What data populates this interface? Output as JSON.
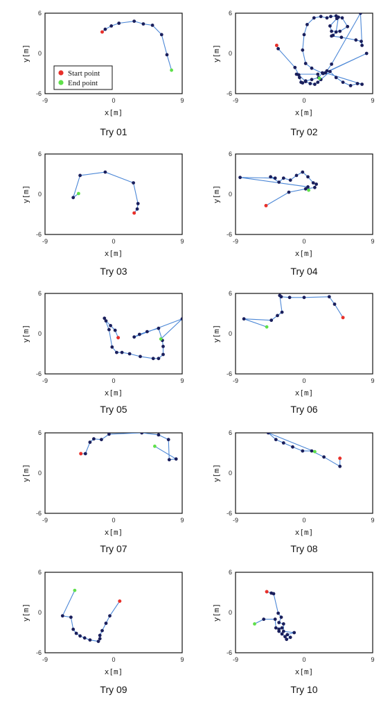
{
  "figure": {
    "x_label": "x[m]",
    "y_label": "y[m]",
    "legend": [
      {
        "label": "Start point",
        "color": "#e8302a"
      },
      {
        "label": "End point",
        "color": "#5fe04a"
      }
    ]
  },
  "colors": {
    "path": "#4a86d6",
    "point": "#1a1f5c",
    "start": "#e8302a",
    "end": "#5fe04a"
  },
  "chart_data": [
    {
      "type": "scatter",
      "caption": "Try 01",
      "xlim": [
        -9,
        9
      ],
      "ylim": [
        -6,
        6
      ],
      "x_ticks": [
        "-9",
        "0",
        "9"
      ],
      "y_ticks": [
        "6",
        "0",
        "-6"
      ],
      "legend_placement": "lower-left",
      "points": [
        [
          -1.5,
          3.2
        ],
        [
          -1.1,
          3.6
        ],
        [
          -0.3,
          4.1
        ],
        [
          0.7,
          4.5
        ],
        [
          2.7,
          4.8
        ],
        [
          3.9,
          4.4
        ],
        [
          5.1,
          4.2
        ],
        [
          6.3,
          2.8
        ],
        [
          7.0,
          -0.2
        ],
        [
          7.6,
          -2.5
        ]
      ]
    },
    {
      "type": "scatter",
      "caption": "Try 02",
      "xlim": [
        -9,
        9
      ],
      "ylim": [
        -6,
        6
      ],
      "x_ticks": [
        "-9",
        "0",
        "9"
      ],
      "y_ticks": [
        "6",
        "0",
        "-6"
      ],
      "points": [
        [
          -3.6,
          1.2
        ],
        [
          -3.4,
          0.7
        ],
        [
          -1.2,
          -2.1
        ],
        [
          -0.7,
          -3.2
        ],
        [
          0.2,
          -4.2
        ],
        [
          0.8,
          -4.5
        ],
        [
          1.4,
          -4.6
        ],
        [
          1.8,
          -4.3
        ],
        [
          2.2,
          -3.9
        ],
        [
          3.4,
          -2.7
        ],
        [
          4.2,
          -3.6
        ],
        [
          5.1,
          -4.3
        ],
        [
          6.1,
          -4.8
        ],
        [
          7.0,
          -4.5
        ],
        [
          7.6,
          -4.6
        ],
        [
          2.8,
          -2.9
        ],
        [
          8.2,
          0.0
        ],
        [
          2.5,
          -3.0
        ],
        [
          1.0,
          -2.2
        ],
        [
          0.2,
          -1.5
        ],
        [
          -0.2,
          0.5
        ],
        [
          0.0,
          2.8
        ],
        [
          0.4,
          4.3
        ],
        [
          1.3,
          5.3
        ],
        [
          2.2,
          5.5
        ],
        [
          3.0,
          5.3
        ],
        [
          3.5,
          5.5
        ],
        [
          4.2,
          5.6
        ],
        [
          5.0,
          5.3
        ],
        [
          5.7,
          4.0
        ],
        [
          4.7,
          3.3
        ],
        [
          3.6,
          3.3
        ],
        [
          3.4,
          4.1
        ],
        [
          4.3,
          5.2
        ],
        [
          4.5,
          5.4
        ],
        [
          4.2,
          3.2
        ],
        [
          3.8,
          2.7
        ],
        [
          3.6,
          2.6
        ],
        [
          4.9,
          2.4
        ],
        [
          6.8,
          2.0
        ],
        [
          7.5,
          1.8
        ],
        [
          7.6,
          1.2
        ],
        [
          7.4,
          6.0
        ],
        [
          3.6,
          -1.6
        ],
        [
          3.0,
          -2.6
        ],
        [
          2.4,
          -2.9
        ],
        [
          1.9,
          -3.6
        ],
        [
          1.0,
          -3.9
        ],
        [
          0.2,
          -4.1
        ],
        [
          -0.2,
          -4.4
        ],
        [
          -0.4,
          -4.3
        ],
        [
          -0.6,
          -3.6
        ],
        [
          -1.0,
          -3.1
        ],
        [
          1.8,
          -3.1
        ],
        [
          2.0,
          -3.7
        ]
      ]
    },
    {
      "type": "scatter",
      "caption": "Try 03",
      "xlim": [
        -9,
        9
      ],
      "ylim": [
        -6,
        6
      ],
      "x_ticks": [
        "-9",
        "0",
        "9"
      ],
      "y_ticks": [
        "6",
        "0",
        "-6"
      ],
      "points": [
        [
          2.7,
          -2.8
        ],
        [
          3.1,
          -2.2
        ],
        [
          3.2,
          -1.4
        ],
        [
          2.6,
          1.7
        ],
        [
          -1.1,
          3.3
        ],
        [
          -4.4,
          2.8
        ],
        [
          -5.3,
          -0.5
        ],
        [
          -4.6,
          0.1
        ]
      ]
    },
    {
      "type": "scatter",
      "caption": "Try 04",
      "xlim": [
        -9,
        9
      ],
      "ylim": [
        -6,
        6
      ],
      "x_ticks": [
        "-9",
        "0",
        "9"
      ],
      "y_ticks": [
        "6",
        "0",
        "-6"
      ],
      "points": [
        [
          -5.0,
          -1.7
        ],
        [
          -2.0,
          0.3
        ],
        [
          0.2,
          0.8
        ],
        [
          1.4,
          1.0
        ],
        [
          1.6,
          1.5
        ],
        [
          1.2,
          1.7
        ],
        [
          0.5,
          2.6
        ],
        [
          -0.2,
          3.3
        ],
        [
          -1.0,
          2.8
        ],
        [
          -1.8,
          2.1
        ],
        [
          -2.7,
          2.4
        ],
        [
          -3.3,
          1.8
        ],
        [
          -4.4,
          2.6
        ],
        [
          -3.8,
          2.4
        ],
        [
          -8.4,
          2.5
        ],
        [
          0.5,
          1.1
        ],
        [
          0.6,
          0.6
        ]
      ]
    },
    {
      "type": "scatter",
      "caption": "Try 05",
      "xlim": [
        -9,
        9
      ],
      "ylim": [
        -6,
        6
      ],
      "x_ticks": [
        "-9",
        "0",
        "9"
      ],
      "y_ticks": [
        "6",
        "0",
        "-6"
      ],
      "points": [
        [
          0.6,
          -0.6
        ],
        [
          0.2,
          0.5
        ],
        [
          -0.4,
          1.2
        ],
        [
          -1.0,
          1.9
        ],
        [
          -1.2,
          2.3
        ],
        [
          -0.6,
          0.6
        ],
        [
          -0.2,
          -2.0
        ],
        [
          0.4,
          -2.8
        ],
        [
          1.1,
          -2.8
        ],
        [
          2.1,
          -3.0
        ],
        [
          3.5,
          -3.4
        ],
        [
          5.2,
          -3.7
        ],
        [
          5.9,
          -3.7
        ],
        [
          6.5,
          -3.1
        ],
        [
          6.5,
          -1.9
        ],
        [
          6.4,
          -1.0
        ],
        [
          5.9,
          0.8
        ],
        [
          4.4,
          0.3
        ],
        [
          3.4,
          -0.1
        ],
        [
          2.7,
          -0.5
        ],
        [
          9.0,
          2.2
        ],
        [
          6.2,
          -0.8
        ]
      ]
    },
    {
      "type": "scatter",
      "caption": "Try 06",
      "xlim": [
        -9,
        9
      ],
      "ylim": [
        -6,
        6
      ],
      "x_ticks": [
        "-9",
        "0",
        "9"
      ],
      "y_ticks": [
        "6",
        "0",
        "-6"
      ],
      "points": [
        [
          5.1,
          2.4
        ],
        [
          4.0,
          4.4
        ],
        [
          3.3,
          5.5
        ],
        [
          0.0,
          5.4
        ],
        [
          -1.9,
          5.4
        ],
        [
          -3.0,
          5.5
        ],
        [
          -3.2,
          5.7
        ],
        [
          -2.9,
          3.2
        ],
        [
          -3.5,
          2.7
        ],
        [
          -4.3,
          2.0
        ],
        [
          -7.9,
          2.2
        ],
        [
          -4.9,
          1.0
        ]
      ]
    },
    {
      "type": "scatter",
      "caption": "Try 07",
      "xlim": [
        -9,
        9
      ],
      "ylim": [
        -6,
        6
      ],
      "x_ticks": [
        "-9",
        "0",
        "9"
      ],
      "y_ticks": [
        "6",
        "0",
        "-6"
      ],
      "points": [
        [
          -4.3,
          2.9
        ],
        [
          -3.7,
          2.9
        ],
        [
          -3.1,
          4.6
        ],
        [
          -2.6,
          5.1
        ],
        [
          -1.6,
          5.0
        ],
        [
          -0.6,
          5.8
        ],
        [
          3.7,
          6.0
        ],
        [
          5.9,
          5.7
        ],
        [
          7.2,
          5.0
        ],
        [
          7.3,
          2.0
        ],
        [
          8.2,
          2.1
        ],
        [
          5.4,
          4.0
        ]
      ]
    },
    {
      "type": "scatter",
      "caption": "Try 08",
      "xlim": [
        -9,
        9
      ],
      "ylim": [
        -6,
        6
      ],
      "x_ticks": [
        "-9",
        "0",
        "9"
      ],
      "y_ticks": [
        "6",
        "0",
        "-6"
      ],
      "points": [
        [
          4.7,
          2.2
        ],
        [
          4.7,
          1.0
        ],
        [
          2.6,
          2.4
        ],
        [
          1.0,
          3.3
        ],
        [
          -0.2,
          3.3
        ],
        [
          -1.5,
          3.9
        ],
        [
          -2.7,
          4.5
        ],
        [
          -3.7,
          5.0
        ],
        [
          -4.7,
          6.0
        ],
        [
          1.4,
          3.2
        ]
      ]
    },
    {
      "type": "scatter",
      "caption": "Try 09",
      "xlim": [
        -9,
        9
      ],
      "ylim": [
        -6,
        6
      ],
      "x_ticks": [
        "-9",
        "0",
        "9"
      ],
      "y_ticks": [
        "6",
        "0",
        "-6"
      ],
      "points": [
        [
          0.8,
          1.7
        ],
        [
          -0.5,
          -0.5
        ],
        [
          -1.0,
          -1.6
        ],
        [
          -1.5,
          -2.7
        ],
        [
          -1.8,
          -3.4
        ],
        [
          -1.8,
          -3.9
        ],
        [
          -2.0,
          -4.3
        ],
        [
          -3.1,
          -4.1
        ],
        [
          -3.8,
          -3.8
        ],
        [
          -4.4,
          -3.5
        ],
        [
          -4.9,
          -3.1
        ],
        [
          -5.3,
          -2.5
        ],
        [
          -5.6,
          -0.7
        ],
        [
          -6.7,
          -0.5
        ],
        [
          -5.1,
          3.3
        ]
      ]
    },
    {
      "type": "scatter",
      "caption": "Try 10",
      "xlim": [
        -9,
        9
      ],
      "ylim": [
        -6,
        6
      ],
      "x_ticks": [
        "-9",
        "0",
        "9"
      ],
      "y_ticks": [
        "6",
        "0",
        "-6"
      ],
      "points": [
        [
          -4.9,
          3.1
        ],
        [
          -4.3,
          2.9
        ],
        [
          -4.0,
          2.8
        ],
        [
          -3.4,
          -0.1
        ],
        [
          -3.0,
          -0.7
        ],
        [
          -3.3,
          -1.5
        ],
        [
          -2.7,
          -1.7
        ],
        [
          -2.7,
          -2.8
        ],
        [
          -1.3,
          -3.0
        ],
        [
          -2.2,
          -3.3
        ],
        [
          -1.8,
          -3.7
        ],
        [
          -2.3,
          -4.0
        ],
        [
          -2.5,
          -3.6
        ],
        [
          -2.9,
          -3.2
        ],
        [
          -3.3,
          -2.8
        ],
        [
          -3.3,
          -2.5
        ],
        [
          -2.9,
          -2.3
        ],
        [
          -3.7,
          -2.3
        ],
        [
          -3.8,
          -1.0
        ],
        [
          -5.3,
          -1.0
        ],
        [
          -6.5,
          -1.7
        ]
      ]
    }
  ]
}
